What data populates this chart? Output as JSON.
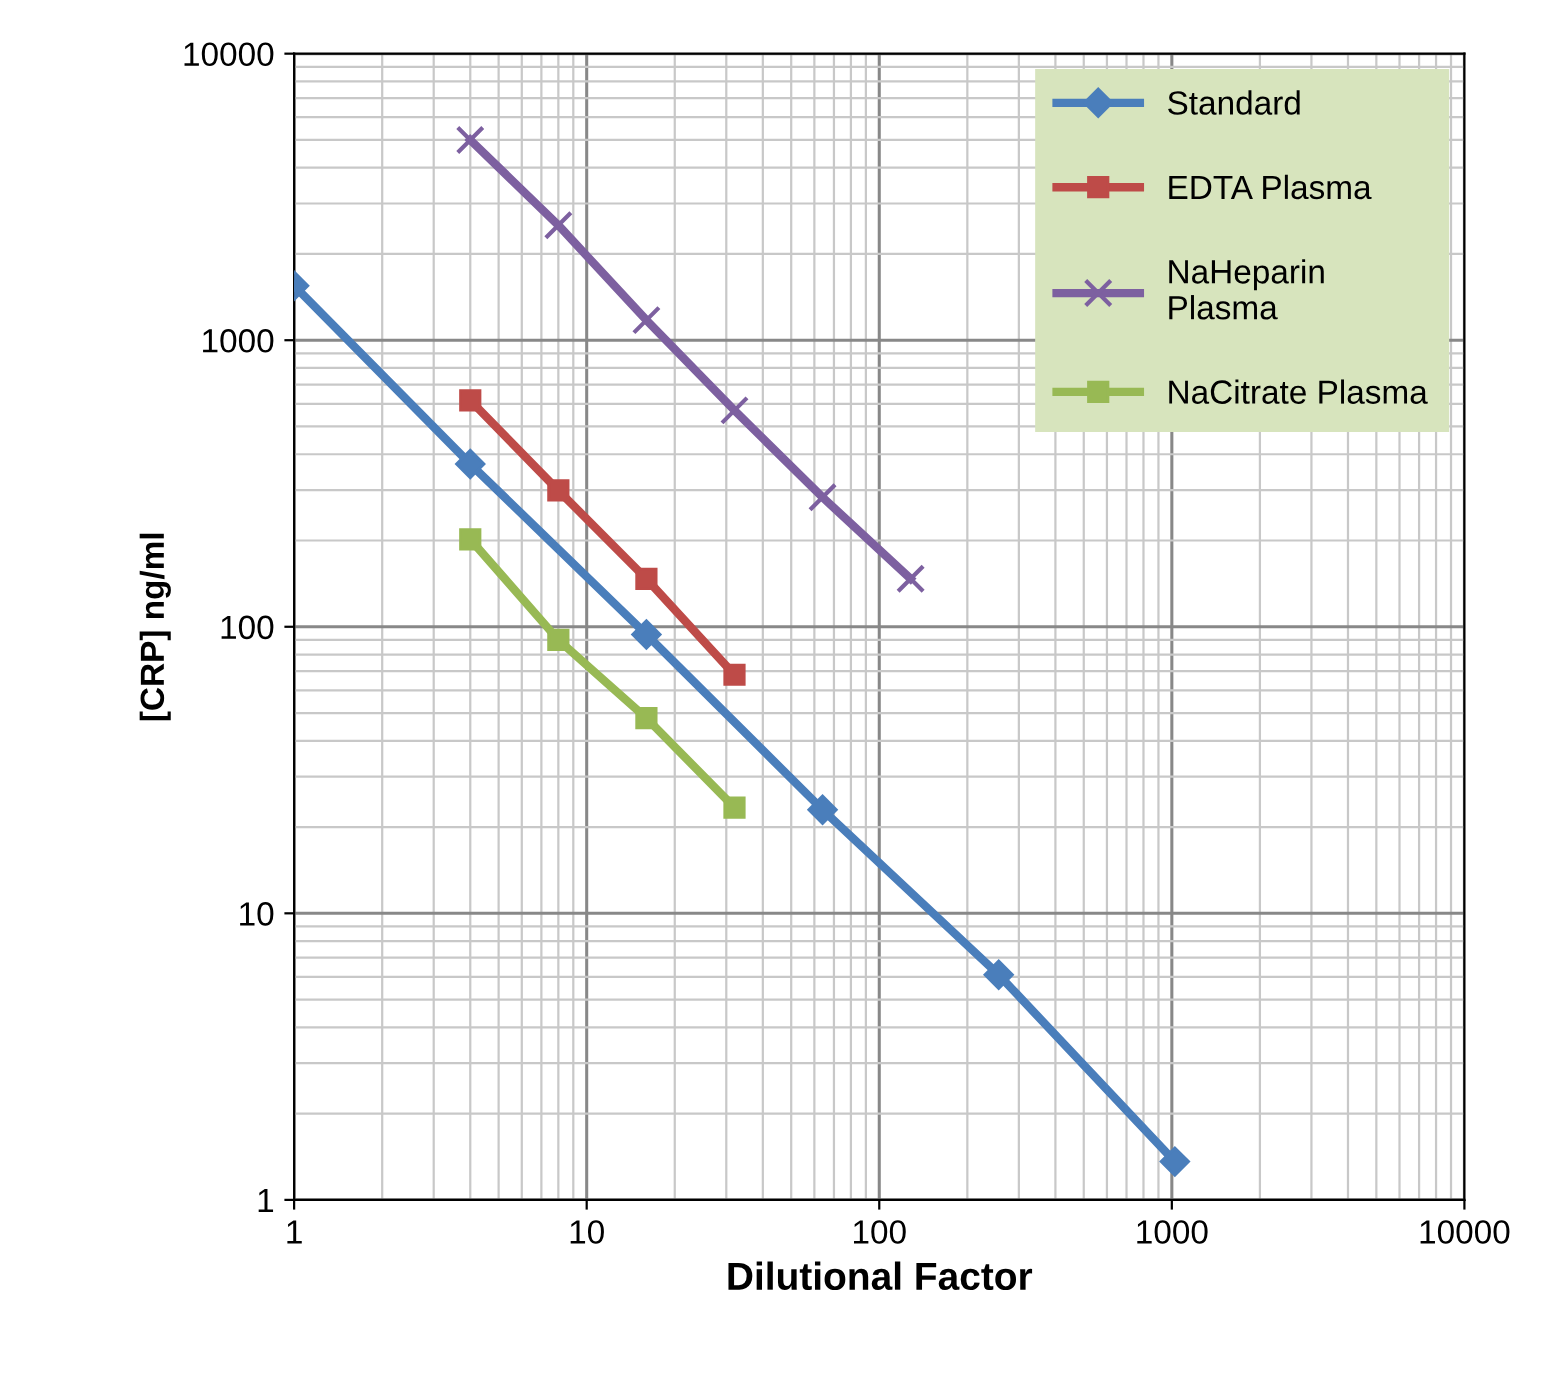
{
  "chart_data": {
    "type": "line",
    "xlabel": "Dilutional Factor",
    "ylabel": "[CRP] ng/ml",
    "log": "xy",
    "xlim": [
      1,
      10000
    ],
    "ylim": [
      1,
      10000
    ],
    "xticks": [
      1,
      10,
      100,
      1000,
      10000
    ],
    "yticks": [
      1,
      10,
      100,
      1000,
      10000
    ],
    "grid": true,
    "legend": "top right",
    "series": [
      {
        "name": "Standard",
        "color": "#4a7ebb",
        "marker": "diamond",
        "x": [
          1,
          4,
          16,
          64,
          256,
          1024
        ],
        "values": [
          1550,
          370,
          94,
          23,
          6.1,
          1.36
        ]
      },
      {
        "name": "EDTA Plasma",
        "color": "#be4b48",
        "marker": "square",
        "x": [
          4,
          8,
          16,
          32
        ],
        "values": [
          617,
          299,
          147,
          68
        ]
      },
      {
        "name": "NaHeparin\nPlasma",
        "color": "#7d60a0",
        "marker": "cross",
        "x": [
          4,
          8,
          16,
          32,
          64,
          128
        ],
        "values": [
          5000,
          2520,
          1175,
          569,
          283,
          147
        ]
      },
      {
        "name": "NaCitrate Plasma",
        "color": "#98b954",
        "marker": "square",
        "x": [
          4,
          8,
          16,
          32
        ],
        "values": [
          202,
          90,
          48,
          23.4
        ]
      }
    ]
  }
}
